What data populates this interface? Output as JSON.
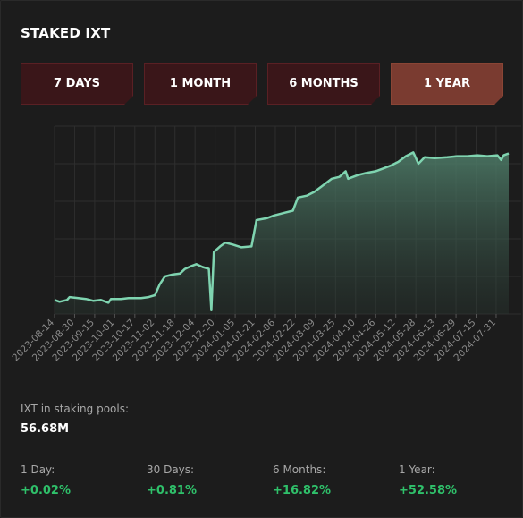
{
  "title": "STAKED IXT",
  "tabs": [
    {
      "label": "7 DAYS",
      "active": false
    },
    {
      "label": "1 MONTH",
      "active": false
    },
    {
      "label": "6 MONTHS",
      "active": false
    },
    {
      "label": "1 YEAR",
      "active": true
    }
  ],
  "colors": {
    "tab_bg": "#3a1619",
    "tab_active_bg": "#7a3b30",
    "line": "#7fd4b0",
    "positive": "#2fc06a"
  },
  "chart_data": {
    "type": "area",
    "title": "",
    "xlabel": "",
    "ylabel": "",
    "x_tick_labels": [
      "2023-08-14",
      "2023-08-30",
      "2023-09-15",
      "2023-10-01",
      "2023-10-17",
      "2023-11-02",
      "2023-11-18",
      "2023-12-04",
      "2023-12-20",
      "2024-01-05",
      "2024-01-21",
      "2024-02-06",
      "2024-02-22",
      "2024-03-09",
      "2024-03-25",
      "2024-04-10",
      "2024-04-26",
      "2024-05-12",
      "2024-05-28",
      "2024-06-13",
      "2024-06-29",
      "2024-07-15",
      "2024-07-31"
    ],
    "x_range": [
      "2023-08-14",
      "2024-08-10"
    ],
    "y_axis_labels_visible": false,
    "y_range_relative": [
      0,
      1
    ],
    "grid": true,
    "series": [
      {
        "points": [
          [
            "2023-08-14",
            0.075
          ],
          [
            "2023-08-18",
            0.065
          ],
          [
            "2023-08-24",
            0.075
          ],
          [
            "2023-08-26",
            0.09
          ],
          [
            "2023-09-02",
            0.085
          ],
          [
            "2023-09-08",
            0.08
          ],
          [
            "2023-09-14",
            0.07
          ],
          [
            "2023-09-20",
            0.075
          ],
          [
            "2023-09-26",
            0.06
          ],
          [
            "2023-09-28",
            0.08
          ],
          [
            "2023-10-06",
            0.08
          ],
          [
            "2023-10-12",
            0.085
          ],
          [
            "2023-10-22",
            0.085
          ],
          [
            "2023-10-28",
            0.09
          ],
          [
            "2023-11-02",
            0.1
          ],
          [
            "2023-11-06",
            0.16
          ],
          [
            "2023-11-10",
            0.2
          ],
          [
            "2023-11-16",
            0.21
          ],
          [
            "2023-11-22",
            0.215
          ],
          [
            "2023-11-26",
            0.24
          ],
          [
            "2023-12-01",
            0.255
          ],
          [
            "2023-12-05",
            0.265
          ],
          [
            "2023-12-10",
            0.25
          ],
          [
            "2023-12-15",
            0.24
          ],
          [
            "2023-12-17",
            0.02
          ],
          [
            "2023-12-19",
            0.33
          ],
          [
            "2023-12-24",
            0.36
          ],
          [
            "2023-12-28",
            0.38
          ],
          [
            "2024-01-03",
            0.37
          ],
          [
            "2024-01-10",
            0.355
          ],
          [
            "2024-01-18",
            0.36
          ],
          [
            "2024-01-22",
            0.5
          ],
          [
            "2024-01-30",
            0.51
          ],
          [
            "2024-02-05",
            0.525
          ],
          [
            "2024-02-14",
            0.54
          ],
          [
            "2024-02-20",
            0.55
          ],
          [
            "2024-02-24",
            0.62
          ],
          [
            "2024-03-02",
            0.63
          ],
          [
            "2024-03-08",
            0.65
          ],
          [
            "2024-03-14",
            0.68
          ],
          [
            "2024-03-22",
            0.72
          ],
          [
            "2024-03-28",
            0.73
          ],
          [
            "2024-04-02",
            0.76
          ],
          [
            "2024-04-04",
            0.72
          ],
          [
            "2024-04-12",
            0.74
          ],
          [
            "2024-04-18",
            0.75
          ],
          [
            "2024-04-26",
            0.76
          ],
          [
            "2024-05-02",
            0.775
          ],
          [
            "2024-05-08",
            0.79
          ],
          [
            "2024-05-14",
            0.81
          ],
          [
            "2024-05-20",
            0.84
          ],
          [
            "2024-05-26",
            0.86
          ],
          [
            "2024-05-30",
            0.8
          ],
          [
            "2024-06-04",
            0.835
          ],
          [
            "2024-06-12",
            0.83
          ],
          [
            "2024-06-22",
            0.835
          ],
          [
            "2024-06-30",
            0.84
          ],
          [
            "2024-07-08",
            0.84
          ],
          [
            "2024-07-16",
            0.845
          ],
          [
            "2024-07-24",
            0.84
          ],
          [
            "2024-08-01",
            0.845
          ],
          [
            "2024-08-04",
            0.82
          ],
          [
            "2024-08-06",
            0.845
          ],
          [
            "2024-08-10",
            0.855
          ]
        ]
      }
    ]
  },
  "stats": {
    "pool_label": "IXT in staking pools:",
    "pool_value": "56.68M",
    "periods": [
      {
        "label": "1 Day:",
        "value": "+0.02%"
      },
      {
        "label": "30 Days:",
        "value": "+0.81%"
      },
      {
        "label": "6 Months:",
        "value": "+16.82%"
      },
      {
        "label": "1 Year:",
        "value": "+52.58%"
      }
    ]
  }
}
